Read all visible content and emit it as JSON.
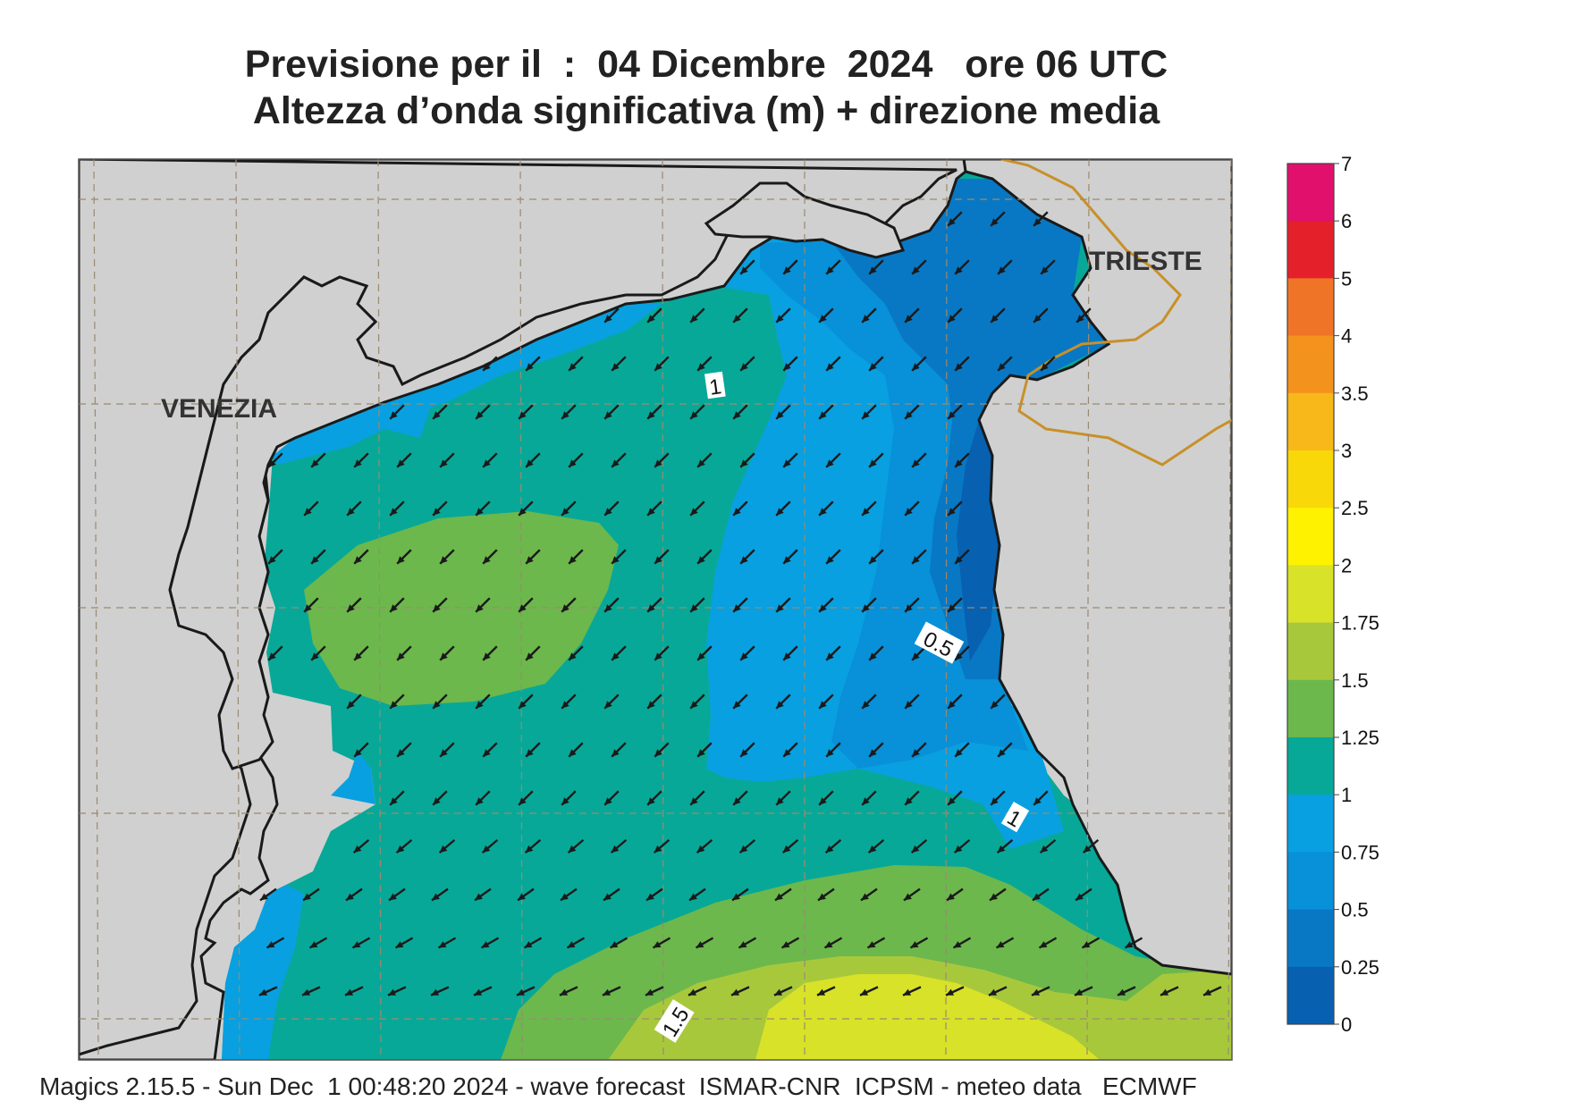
{
  "header": {
    "title_line1": "Previsione per il  :  04 Dicembre  2024   ore 06 UTC",
    "title_line2": "Altezza d’onda significativa (m) + direzione media"
  },
  "map": {
    "cities": [
      "VENEZIA",
      "TRIESTE"
    ],
    "contour_labels": [
      "1",
      "0.5",
      "1",
      "1.5"
    ],
    "land_color": "#d0d0d0",
    "coast_color": "#1a1a1a",
    "border_color": "#c8902a",
    "arrow_color": "#1a1a1a",
    "arrow_direction": "mean wave direction toward south-west"
  },
  "legend": {
    "labels": [
      "7",
      "6",
      "5",
      "4",
      "3.5",
      "3",
      "2.5",
      "2",
      "1.75",
      "1.5",
      "1.25",
      "1",
      "0.75",
      "0.5",
      "0.25",
      "0"
    ],
    "colors": [
      "#e0106c",
      "#e4202a",
      "#f07428",
      "#f4921e",
      "#f8b81a",
      "#f8d808",
      "#fff200",
      "#d8e228",
      "#a8c83c",
      "#6cb84c",
      "#08a898",
      "#08a0e0",
      "#0890d8",
      "#0878c4",
      "#0860b0"
    ]
  },
  "footer": {
    "text": "Magics 2.15.5 - Sun Dec  1 00:48:20 2024 - wave forecast  ISMAR-CNR  ICPSM - meteo data   ECMWF"
  }
}
